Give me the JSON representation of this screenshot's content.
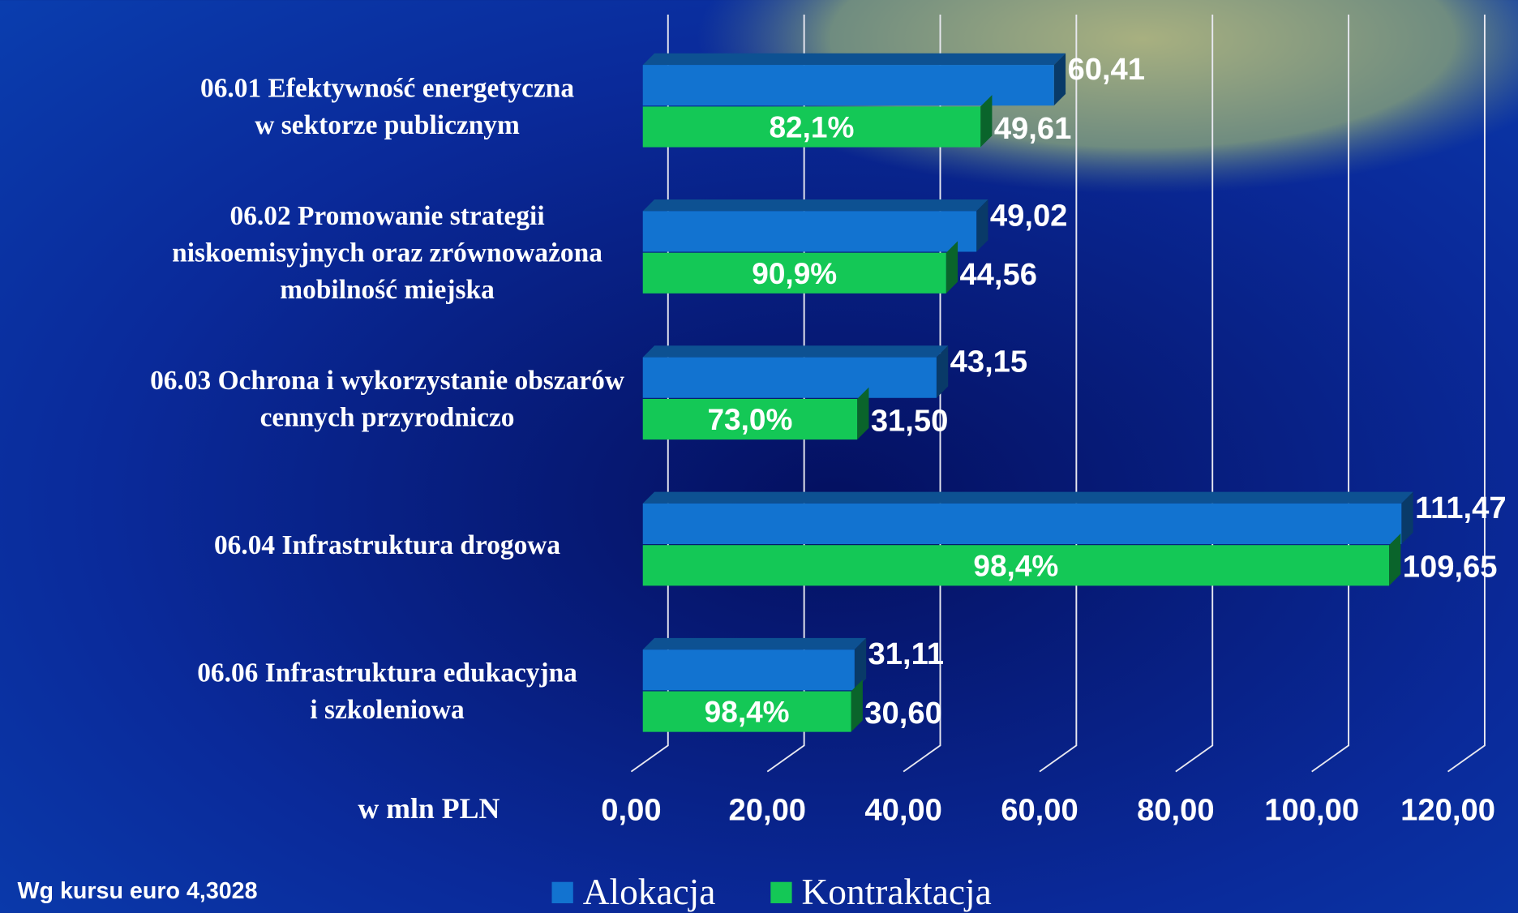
{
  "chart_data": {
    "type": "bar",
    "orientation": "horizontal",
    "categories": [
      "06.01 Efektywność energetyczna\nw sektorze publicznym",
      "06.02 Promowanie strategii\nniskoemisyjnych oraz zrównoważona\nmobilność miejska",
      "06.03 Ochrona i wykorzystanie obszarów\ncennych przyrodniczo",
      "06.04 Infrastruktura drogowa",
      "06.06 Infrastruktura edukacyjna\ni szkoleniowa"
    ],
    "series": [
      {
        "name": "Alokacja",
        "color": "#1273d0",
        "values": [
          60.41,
          49.02,
          43.15,
          111.47,
          31.11
        ],
        "value_labels": [
          "60,41",
          "49,02",
          "43,15",
          "111,47",
          "31,11"
        ]
      },
      {
        "name": "Kontraktacja",
        "color": "#14c856",
        "values": [
          49.61,
          44.56,
          31.5,
          109.65,
          30.6
        ],
        "value_labels": [
          "49,61",
          "44,56",
          "31,50",
          "109,65",
          "30,60"
        ]
      }
    ],
    "share_labels": [
      "82,1%",
      "90,9%",
      "73,0%",
      "98,4%",
      "98,4%"
    ],
    "xlim": [
      0,
      120
    ],
    "xticks": [
      {
        "value": 0,
        "label": "0,00"
      },
      {
        "value": 20,
        "label": "20,00"
      },
      {
        "value": 40,
        "label": "40,00"
      },
      {
        "value": 60,
        "label": "60,00"
      },
      {
        "value": 80,
        "label": "80,00"
      },
      {
        "value": 100,
        "label": "100,00"
      },
      {
        "value": 120,
        "label": "120,00"
      }
    ],
    "xlabel": "w mln PLN",
    "grid": true,
    "legend": "bottom",
    "note": "Wg kursu euro 4,3028"
  }
}
